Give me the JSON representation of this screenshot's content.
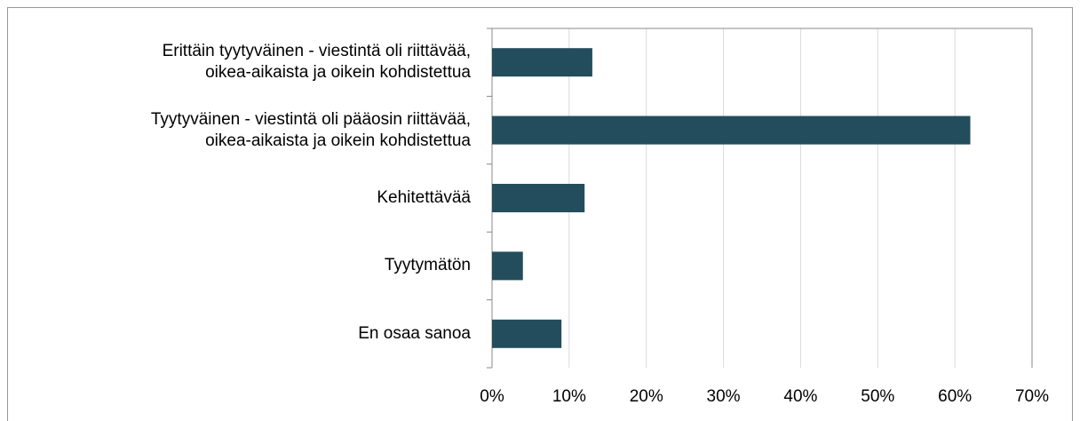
{
  "chart_data": {
    "type": "bar",
    "orientation": "horizontal",
    "categories": [
      "Erittäin tyytyväinen - viestintä oli riittävää,\noikea-aikaista ja oikein kohdistettua",
      "Tyytyväinen - viestintä oli pääosin riittävää,\noikea-aikaista ja oikein kohdistettua",
      "Kehitettävää",
      "Tyytymätön",
      "En osaa sanoa"
    ],
    "values": [
      13,
      62,
      12,
      4,
      9
    ],
    "color": "#234d5c",
    "xlim": [
      0,
      70
    ],
    "xticks": [
      {
        "value": 0,
        "label": "0%"
      },
      {
        "value": 10,
        "label": "10%"
      },
      {
        "value": 20,
        "label": "20%"
      },
      {
        "value": 30,
        "label": "30%"
      },
      {
        "value": 40,
        "label": "40%"
      },
      {
        "value": 50,
        "label": "50%"
      },
      {
        "value": 60,
        "label": "60%"
      },
      {
        "value": 70,
        "label": "70%"
      }
    ],
    "grid": true
  }
}
